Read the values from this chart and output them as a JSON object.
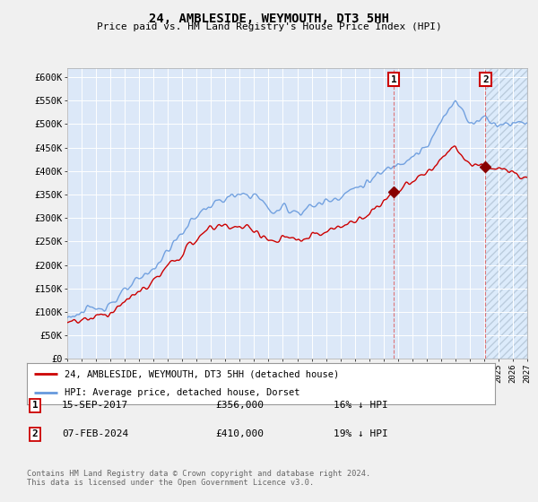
{
  "title": "24, AMBLESIDE, WEYMOUTH, DT3 5HH",
  "subtitle": "Price paid vs. HM Land Registry's House Price Index (HPI)",
  "ylabel_ticks": [
    "£0",
    "£50K",
    "£100K",
    "£150K",
    "£200K",
    "£250K",
    "£300K",
    "£350K",
    "£400K",
    "£450K",
    "£500K",
    "£550K",
    "£600K"
  ],
  "ytick_values": [
    0,
    50000,
    100000,
    150000,
    200000,
    250000,
    300000,
    350000,
    400000,
    450000,
    500000,
    550000,
    600000
  ],
  "ylim": [
    0,
    620000
  ],
  "x_start_year": 1995,
  "x_end_year": 2027,
  "background_color": "#f0f4ff",
  "plot_bg_color": "#dce8f8",
  "grid_color": "#ffffff",
  "hpi_color": "#6699dd",
  "price_color": "#cc0000",
  "marker1_year": 2017.71,
  "marker1_price": 356000,
  "marker2_year": 2024.09,
  "marker2_price": 410000,
  "legend_label_price": "24, AMBLESIDE, WEYMOUTH, DT3 5HH (detached house)",
  "legend_label_hpi": "HPI: Average price, detached house, Dorset",
  "annotation1_label": "1",
  "annotation2_label": "2",
  "note1_num": "1",
  "note1_date": "15-SEP-2017",
  "note1_price": "£356,000",
  "note1_hpi": "16% ↓ HPI",
  "note2_num": "2",
  "note2_date": "07-FEB-2024",
  "note2_price": "£410,000",
  "note2_hpi": "19% ↓ HPI",
  "footer": "Contains HM Land Registry data © Crown copyright and database right 2024.\nThis data is licensed under the Open Government Licence v3.0.",
  "vline_color": "#dd4444",
  "hatch_color": "#c8d8f0"
}
